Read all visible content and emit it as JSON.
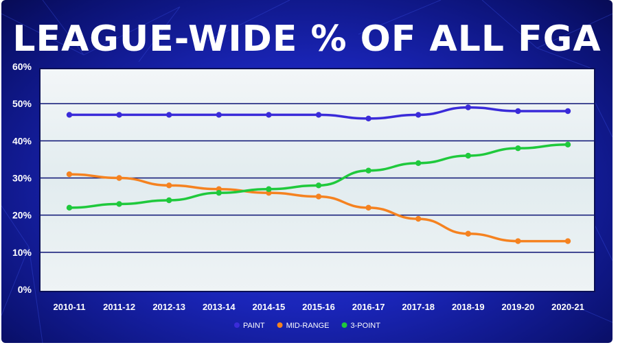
{
  "chart_data": {
    "type": "line",
    "title": "LEAGUE-WIDE % OF ALL FGA",
    "categories": [
      "2010-11",
      "2011-12",
      "2012-13",
      "2013-14",
      "2014-15",
      "2015-16",
      "2016-17",
      "2017-18",
      "2018-19",
      "2019-20",
      "2020-21"
    ],
    "yticks": [
      "0%",
      "10%",
      "20%",
      "30%",
      "40%",
      "50%",
      "60%"
    ],
    "ylim": [
      0,
      60
    ],
    "grid": true,
    "legend_position": "bottom",
    "series": [
      {
        "name": "PAINT",
        "color": "#3a2bd9",
        "values": [
          47,
          47,
          47,
          47,
          47,
          47,
          46,
          47,
          49,
          48,
          48
        ]
      },
      {
        "name": "MID-RANGE",
        "color": "#f58220",
        "values": [
          31,
          30,
          28,
          27,
          26,
          25,
          22,
          19,
          15,
          13,
          13
        ]
      },
      {
        "name": "3-POINT",
        "color": "#1fc93c",
        "values": [
          22,
          23,
          24,
          26,
          27,
          28,
          32,
          34,
          36,
          38,
          39
        ]
      }
    ]
  }
}
